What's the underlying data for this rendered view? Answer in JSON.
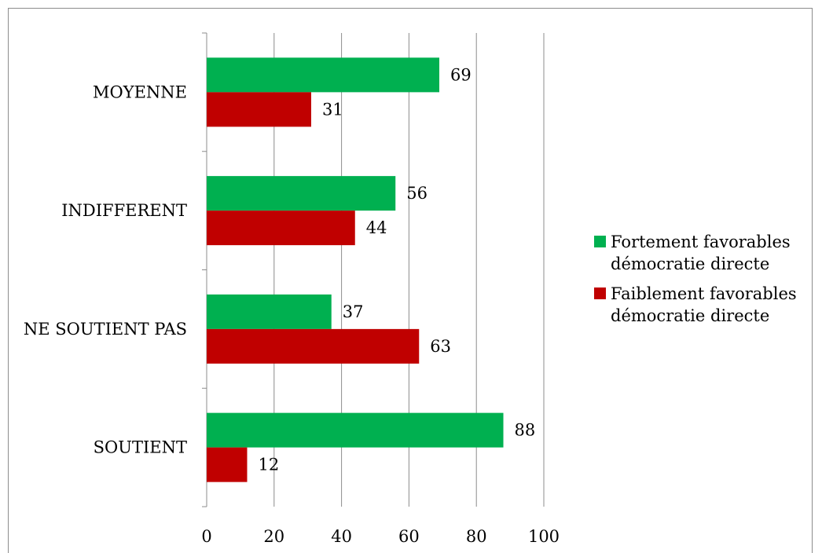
{
  "chart_data": {
    "type": "bar",
    "orientation": "horizontal",
    "categories": [
      "MOYENNE",
      "INDIFFERENT",
      "NE SOUTIENT PAS",
      "SOUTIENT"
    ],
    "series": [
      {
        "name": "Fortement favorables démocratie directe",
        "values": [
          69,
          56,
          37,
          88
        ],
        "color": "#00b050"
      },
      {
        "name": "Faiblement favorables démocratie directe",
        "values": [
          31,
          44,
          63,
          12
        ],
        "color": "#c00000"
      }
    ],
    "xlim": [
      0,
      100
    ],
    "xticks": [
      0,
      20,
      40,
      60,
      80,
      100
    ],
    "grid": true,
    "legend_position": "right",
    "data_labels": true
  }
}
